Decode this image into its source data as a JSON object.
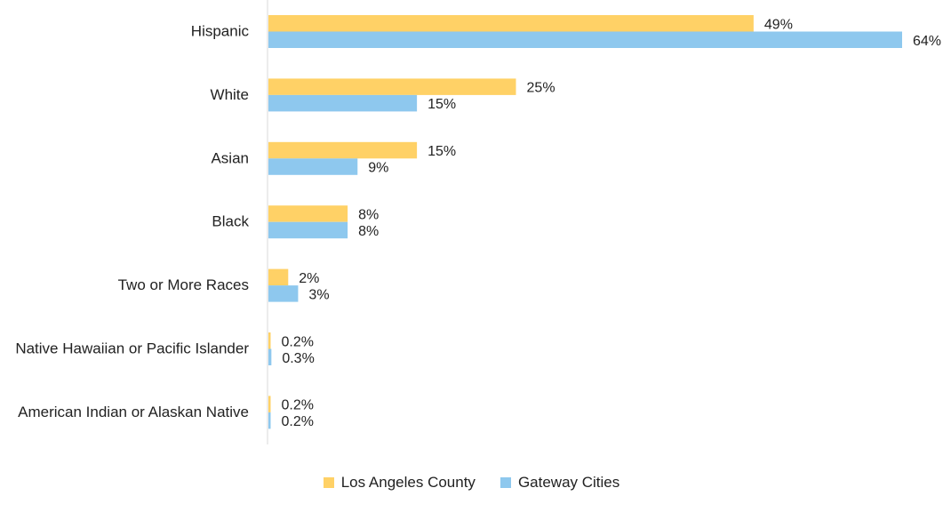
{
  "chart_data": {
    "type": "bar",
    "orientation": "horizontal",
    "categories": [
      "Hispanic",
      "White",
      "Asian",
      "Black",
      "Two or More Races",
      "Native Hawaiian or Pacific Islander",
      "American Indian or Alaskan Native"
    ],
    "series": [
      {
        "name": "Los Angeles County",
        "color": "#FFD166",
        "values": [
          49,
          25,
          15,
          8,
          2,
          0.2,
          0.2
        ],
        "labels": [
          "49%",
          "25%",
          "15%",
          "8%",
          "2%",
          "0.2%",
          "0.2%"
        ]
      },
      {
        "name": "Gateway Cities",
        "color": "#8EC8EE",
        "values": [
          64,
          15,
          9,
          8,
          3,
          0.3,
          0.2
        ],
        "labels": [
          "64%",
          "15%",
          "9%",
          "8%",
          "3%",
          "0.3%",
          "0.2%"
        ]
      }
    ],
    "xlim": [
      0,
      64
    ],
    "grid": false,
    "legend_position": "bottom"
  }
}
